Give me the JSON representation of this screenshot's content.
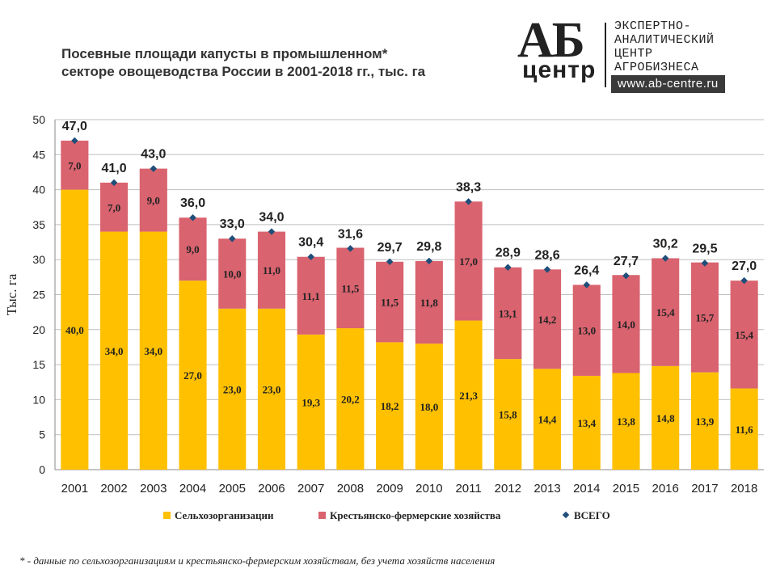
{
  "title": {
    "line1": "Посевные площади капусты в промышленном*",
    "line2": "секторе овощеводства России в 2001-2018 гг., тыс. га"
  },
  "logo": {
    "mark": "АБ",
    "sub": "центр",
    "lines": [
      "ЭКСПЕРТНО-",
      "АНАЛИТИЧЕСКИЙ",
      "ЦЕНТР",
      "АГРОБИЗНЕСА"
    ],
    "url": "www.ab-centre.ru"
  },
  "footnote": "* - данные по сельхозорганизациям и крестьянско-фермерским  хозяйствам, без учета хозяйств населения",
  "chart_data": {
    "type": "bar",
    "stacked": true,
    "categories": [
      "2001",
      "2002",
      "2003",
      "2004",
      "2005",
      "2006",
      "2007",
      "2008",
      "2009",
      "2010",
      "2011",
      "2012",
      "2013",
      "2014",
      "2015",
      "2016",
      "2017",
      "2018"
    ],
    "series": [
      {
        "name": "Сельхозорганизации",
        "color": "#FFC000",
        "values": [
          40.0,
          34.0,
          34.0,
          27.0,
          23.0,
          23.0,
          19.3,
          20.2,
          18.2,
          18.0,
          21.3,
          15.8,
          14.4,
          13.4,
          13.8,
          14.8,
          13.9,
          11.6
        ],
        "labels": [
          "40,0",
          "34,0",
          "34,0",
          "27,0",
          "23,0",
          "23,0",
          "19,3",
          "20,2",
          "18,2",
          "18,0",
          "21,3",
          "15,8",
          "14,4",
          "13,4",
          "13,8",
          "14,8",
          "13,9",
          "11,6"
        ]
      },
      {
        "name": "Крестьянско-фермерские хозяйства",
        "color": "#D9636F",
        "values": [
          7.0,
          7.0,
          9.0,
          9.0,
          10.0,
          11.0,
          11.1,
          11.5,
          11.5,
          11.8,
          17.0,
          13.1,
          14.2,
          13.0,
          14.0,
          15.4,
          15.7,
          15.4
        ],
        "labels": [
          "7,0",
          "7,0",
          "9,0",
          "9,0",
          "10,0",
          "11,0",
          "11,1",
          "11,5",
          "11,5",
          "11,8",
          "17,0",
          "13,1",
          "14,2",
          "13,0",
          "14,0",
          "15,4",
          "15,7",
          "15,4"
        ]
      }
    ],
    "total": {
      "name": "ВСЕГО",
      "color": "#1F4E79",
      "values": [
        47.0,
        41.0,
        43.0,
        36.0,
        33.0,
        34.0,
        30.4,
        31.6,
        29.7,
        29.8,
        38.3,
        28.9,
        28.6,
        26.4,
        27.7,
        30.2,
        29.5,
        27.0
      ],
      "labels": [
        "47,0",
        "41,0",
        "43,0",
        "36,0",
        "33,0",
        "34,0",
        "30,4",
        "31,6",
        "29,7",
        "29,8",
        "38,3",
        "28,9",
        "28,6",
        "26,4",
        "27,7",
        "30,2",
        "29,5",
        "27,0"
      ]
    },
    "ylabel": "Тыс. га",
    "ylim": [
      0,
      50
    ],
    "yticks": [
      "0",
      "5",
      "10",
      "15",
      "20",
      "25",
      "30",
      "35",
      "40",
      "45",
      "50"
    ],
    "grid": true,
    "legend_position": "bottom"
  }
}
